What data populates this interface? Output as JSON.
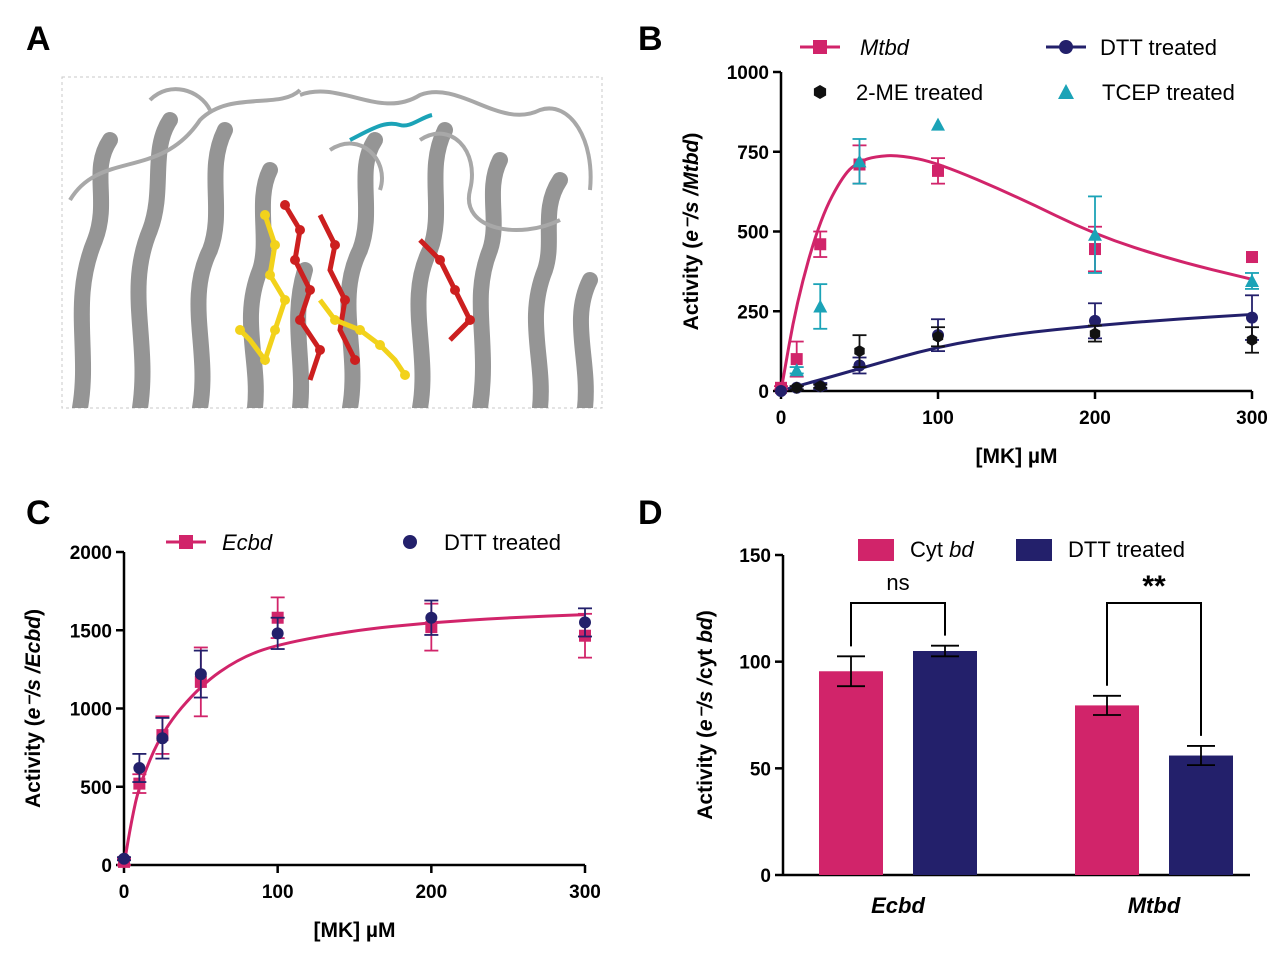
{
  "panels": {
    "a": "A",
    "b": "B",
    "c": "C",
    "d": "D"
  },
  "colors": {
    "magenta": "#d1246a",
    "navy": "#23206b",
    "black": "#111111",
    "teal": "#1ba3b7",
    "yellow": "#f2d21b",
    "red": "#cc1f1f",
    "gray": "#8f8f8f"
  },
  "chart_data": [
    {
      "panel": "B",
      "type": "scatter",
      "xlabel": "[MK] µM",
      "ylabel": "Activity (e⁻/s /Mtbd)",
      "xlim": [
        0,
        300
      ],
      "ylim": [
        0,
        1000
      ],
      "xticks": [
        0,
        100,
        200,
        300
      ],
      "yticks": [
        0,
        250,
        500,
        750,
        1000
      ],
      "legend_position": "top",
      "series": [
        {
          "name": "Mtbd",
          "marker": "square",
          "color": "#d1246a",
          "x": [
            0,
            10,
            25,
            50,
            100,
            200,
            300
          ],
          "y": [
            10,
            100,
            460,
            710,
            690,
            445,
            420
          ],
          "err": [
            5,
            55,
            40,
            60,
            40,
            70,
            0
          ],
          "fit": {
            "x": [
              0,
              10,
              25,
              40,
              50,
              60,
              75,
              100,
              150,
              200,
              250,
              300
            ],
            "y": [
              0,
              280,
              540,
              680,
              720,
              735,
              740,
              715,
              610,
              490,
              410,
              350
            ]
          }
        },
        {
          "name": "DTT  treated",
          "marker": "circle",
          "color": "#23206b",
          "x": [
            0,
            10,
            25,
            50,
            100,
            200,
            300
          ],
          "y": [
            0,
            10,
            15,
            80,
            175,
            220,
            230
          ],
          "err": [
            0,
            5,
            10,
            25,
            50,
            55,
            70
          ],
          "fit": {
            "x": [
              0,
              10,
              25,
              50,
              100,
              150,
              200,
              250,
              300
            ],
            "y": [
              0,
              15,
              35,
              70,
              140,
              180,
              205,
              225,
              240
            ]
          }
        },
        {
          "name": "2-ME treated",
          "marker": "hexagon",
          "color": "#111111",
          "x": [
            10,
            25,
            50,
            100,
            200,
            300
          ],
          "y": [
            10,
            15,
            125,
            170,
            180,
            160
          ],
          "err": [
            5,
            5,
            50,
            30,
            25,
            40
          ]
        },
        {
          "name": "TCEP treated",
          "marker": "triangle",
          "color": "#1ba3b7",
          "x": [
            10,
            25,
            50,
            100,
            200,
            300
          ],
          "y": [
            65,
            265,
            720,
            835,
            490,
            345
          ],
          "err": [
            10,
            70,
            70,
            0,
            120,
            25
          ]
        }
      ]
    },
    {
      "panel": "C",
      "type": "scatter",
      "xlabel": "[MK] µM",
      "ylabel": "Activity (e⁻/s /Ecbd)",
      "xlim": [
        0,
        300
      ],
      "ylim": [
        0,
        2000
      ],
      "xticks": [
        0,
        100,
        200,
        300
      ],
      "yticks": [
        0,
        500,
        1000,
        1500,
        2000
      ],
      "legend_position": "top",
      "series": [
        {
          "name": "Ecbd",
          "marker": "square",
          "color": "#d1246a",
          "x": [
            0,
            10,
            25,
            50,
            100,
            200,
            300
          ],
          "y": [
            20,
            520,
            830,
            1170,
            1580,
            1520,
            1465
          ],
          "err": [
            20,
            60,
            120,
            220,
            130,
            150,
            140
          ],
          "fit": {
            "x": [
              0,
              5,
              10,
              25,
              50,
              75,
              100,
              150,
              200,
              250,
              300
            ],
            "y": [
              0,
              290,
              510,
              860,
              1150,
              1320,
              1410,
              1500,
              1550,
              1580,
              1600
            ]
          }
        },
        {
          "name": "DTT  treated",
          "marker": "circle",
          "color": "#23206b",
          "x": [
            0,
            10,
            25,
            50,
            100,
            200,
            300
          ],
          "y": [
            40,
            620,
            810,
            1220,
            1480,
            1580,
            1550
          ],
          "err": [
            10,
            90,
            130,
            150,
            100,
            110,
            90
          ]
        }
      ]
    },
    {
      "panel": "D",
      "type": "bar",
      "ylabel": "Activity (e⁻/s /cyt bd)",
      "ylim": [
        0,
        150
      ],
      "yticks": [
        0,
        50,
        100,
        150
      ],
      "categories": [
        "Ecbd",
        "Mtbd"
      ],
      "legend_position": "top",
      "series": [
        {
          "name_prefix": "Cyt ",
          "name_italic": "bd",
          "color": "#d1246a",
          "values": [
            95.5,
            79.5
          ],
          "err": [
            7,
            4.5
          ]
        },
        {
          "name": "DTT treated",
          "color": "#23206b",
          "values": [
            105,
            56
          ],
          "err": [
            2.5,
            4.5
          ]
        }
      ],
      "annotations": [
        {
          "category": "Ecbd",
          "text": "ns"
        },
        {
          "category": "Mtbd",
          "text": "**"
        }
      ]
    }
  ]
}
